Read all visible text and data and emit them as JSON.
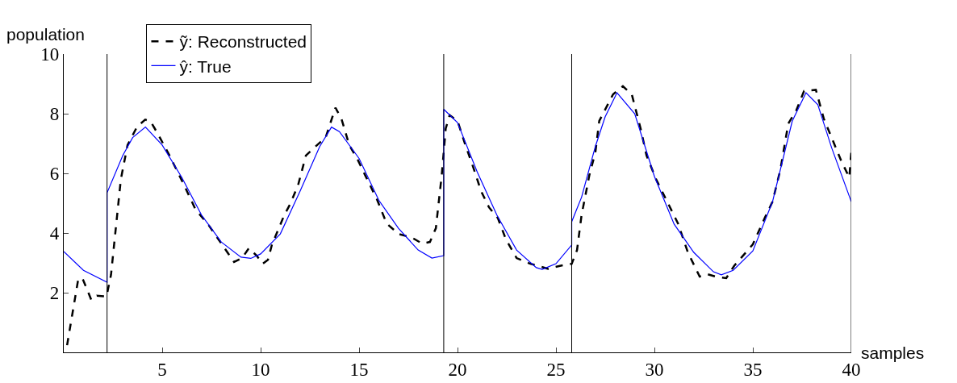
{
  "chart_data": {
    "type": "line",
    "xlabel": "samples",
    "ylabel": "population",
    "xlim": [
      0,
      40
    ],
    "ylim": [
      0,
      10
    ],
    "xticks": [
      5,
      10,
      15,
      20,
      25,
      30,
      35,
      40
    ],
    "yticks": [
      2,
      4,
      6,
      8,
      10
    ],
    "grid": false,
    "legend": "top left",
    "marker": "none",
    "series": [
      {
        "name": "ỹ: Reconstructed",
        "color": "#000000",
        "line_style": "dashed",
        "x": [
          0.17,
          0.73,
          0.94,
          1.4,
          1.68,
          2.17,
          2.4,
          2.9,
          3.24,
          3.73,
          4.14,
          4.4,
          4.8,
          5.37,
          6.06,
          6.7,
          7.3,
          7.95,
          8.65,
          9.06,
          9.4,
          9.8,
          10.1,
          10.37,
          10.57,
          11.2,
          11.5,
          11.9,
          12.3,
          12.87,
          13.3,
          13.8,
          14.1,
          14.5,
          14.9,
          15.3,
          15.9,
          16.4,
          17,
          17.7,
          18.2,
          18.6,
          18.9,
          19.2,
          19.4,
          19.6,
          20,
          20.4,
          20.8,
          21.2,
          21.6,
          22.05,
          22.45,
          23,
          23.7,
          24.1,
          24.6,
          25.2,
          25.8,
          26.07,
          26.3,
          26.7,
          27,
          27.2,
          27.9,
          28.4,
          28.85,
          29.3,
          29.6,
          30.1,
          30.65,
          31.2,
          31.7,
          32.3,
          32.7,
          33.1,
          33.65,
          34.05,
          34.5,
          35,
          35.6,
          36,
          36.4,
          36.8,
          37.2,
          37.6,
          38.2,
          38.6,
          39,
          39.5,
          39.9,
          40
        ],
        "values": [
          0.24,
          2.43,
          2.5,
          1.76,
          1.9,
          1.87,
          2.6,
          5.8,
          6.95,
          7.57,
          7.8,
          7.75,
          7.3,
          6.6,
          5.68,
          4.78,
          4.32,
          3.7,
          3.03,
          3.16,
          3.49,
          3.24,
          2.97,
          3.1,
          3.6,
          4.6,
          4.97,
          5.6,
          6.6,
          6.95,
          7.2,
          8.2,
          7.84,
          6.95,
          6.5,
          5.95,
          5.14,
          4.32,
          3.97,
          3.84,
          3.65,
          3.7,
          4.16,
          5.95,
          7.5,
          7.95,
          7.76,
          6.95,
          6.2,
          5.4,
          4.86,
          4.5,
          3.8,
          3.16,
          2.97,
          2.9,
          2.8,
          2.9,
          2.97,
          3.43,
          4.6,
          5.95,
          6.7,
          7.76,
          8.65,
          8.92,
          8.65,
          7.5,
          6.6,
          5.78,
          5.05,
          4.32,
          3.35,
          2.54,
          2.62,
          2.54,
          2.49,
          2.9,
          3.24,
          3.62,
          4.5,
          5.05,
          6.13,
          7.67,
          8.1,
          8.76,
          8.8,
          7.84,
          7.2,
          6.4,
          5.86,
          6.7
        ]
      },
      {
        "name": "ŷ: True",
        "color": "#0000ff",
        "line_style": "solid",
        "x": [
          0,
          1,
          2.2,
          2.2,
          3,
          3.5,
          4.15,
          5,
          6,
          7,
          8,
          9,
          9.5,
          10,
          11,
          12,
          13,
          13.6,
          14,
          15,
          16,
          17,
          18,
          18.7,
          19.3,
          19.3,
          20,
          21,
          22,
          23,
          24,
          24.3,
          25,
          25.8,
          25.8,
          26.3,
          27,
          27.5,
          28.1,
          29,
          30,
          31,
          32,
          33,
          33.4,
          34,
          35,
          36,
          37,
          37.7,
          38.3,
          39,
          40
        ],
        "values": [
          3.38,
          2.75,
          2.35,
          5.35,
          6.6,
          7.2,
          7.55,
          6.95,
          5.86,
          4.6,
          3.7,
          3.19,
          3.15,
          3.3,
          3.97,
          5.4,
          6.9,
          7.55,
          7.4,
          6.5,
          5.1,
          4.16,
          3.43,
          3.16,
          3.24,
          8.15,
          7.7,
          6.05,
          4.6,
          3.43,
          2.84,
          2.78,
          2.97,
          3.6,
          4.38,
          5.2,
          6.9,
          7.9,
          8.7,
          8.0,
          5.9,
          4.3,
          3.35,
          2.7,
          2.6,
          2.75,
          3.4,
          5.05,
          7.75,
          8.7,
          8.3,
          6.86,
          5.05
        ]
      }
    ],
    "ref_lines": [
      {
        "axis": "x",
        "value": 2.2,
        "color": "#000000"
      },
      {
        "axis": "x",
        "value": 19.3,
        "color": "#000000"
      },
      {
        "axis": "x",
        "value": 25.8,
        "color": "#000000"
      },
      {
        "axis": "x",
        "value": 40,
        "color": "#000000"
      }
    ]
  }
}
